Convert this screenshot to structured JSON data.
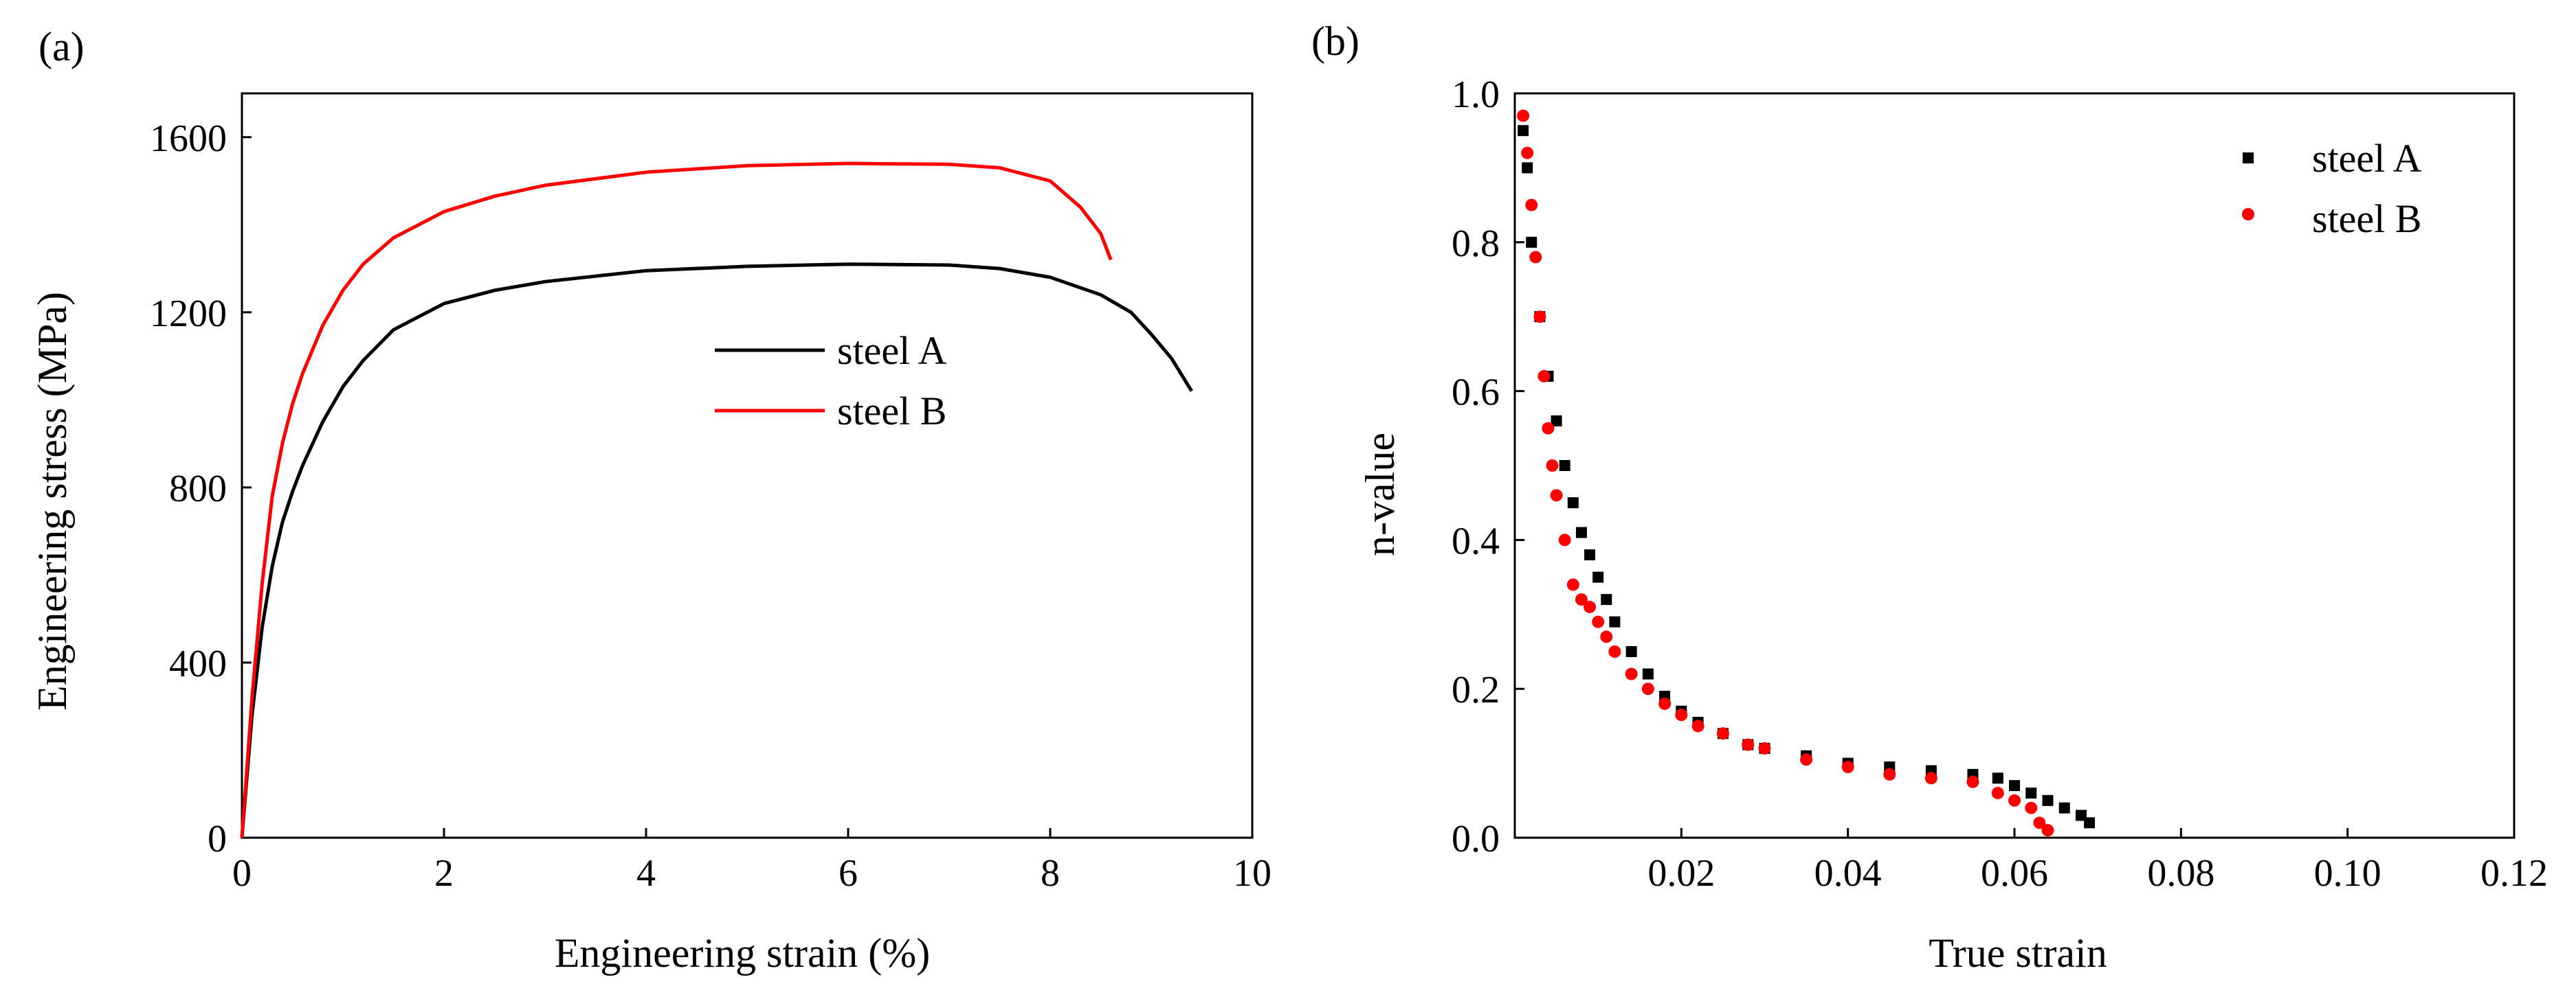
{
  "chart_data": [
    {
      "panel_label": "(a)",
      "type": "line",
      "title": "",
      "xlabel": "Engineering strain (%)",
      "ylabel": "Engineering stress (MPa)",
      "xlim": [
        0,
        10
      ],
      "ylim": [
        0,
        1700
      ],
      "xticks": [
        0,
        2,
        4,
        6,
        8,
        10
      ],
      "xtick_labels": [
        "0",
        "2",
        "4",
        "6",
        "8",
        "10"
      ],
      "yticks": [
        0,
        400,
        800,
        1200,
        1600
      ],
      "ytick_labels": [
        "0",
        "400",
        "800",
        "1200",
        "1600"
      ],
      "grid": false,
      "legend_position": "center-right",
      "series": [
        {
          "name": "steel A",
          "color": "#000000",
          "x": [
            0,
            0.1,
            0.2,
            0.3,
            0.4,
            0.5,
            0.6,
            0.8,
            1.0,
            1.2,
            1.5,
            2.0,
            2.5,
            3.0,
            4.0,
            5.0,
            6.0,
            7.0,
            7.5,
            8.0,
            8.5,
            8.8,
            9.0,
            9.2,
            9.4
          ],
          "y": [
            0,
            280,
            480,
            620,
            720,
            790,
            850,
            950,
            1030,
            1090,
            1160,
            1220,
            1250,
            1270,
            1295,
            1305,
            1310,
            1308,
            1300,
            1280,
            1240,
            1200,
            1150,
            1095,
            1020
          ]
        },
        {
          "name": "steel B",
          "color": "#ff0000",
          "x": [
            0,
            0.1,
            0.2,
            0.3,
            0.4,
            0.5,
            0.6,
            0.8,
            1.0,
            1.2,
            1.5,
            2.0,
            2.5,
            3.0,
            4.0,
            5.0,
            6.0,
            7.0,
            7.5,
            8.0,
            8.3,
            8.5,
            8.6
          ],
          "y": [
            0,
            320,
            580,
            780,
            900,
            990,
            1060,
            1170,
            1250,
            1310,
            1370,
            1430,
            1465,
            1490,
            1520,
            1535,
            1540,
            1538,
            1530,
            1500,
            1440,
            1380,
            1320
          ]
        }
      ]
    },
    {
      "panel_label": "(b)",
      "type": "scatter",
      "title": "",
      "xlabel": "True strain",
      "ylabel": "n-value",
      "xlim": [
        0,
        0.12
      ],
      "ylim": [
        0,
        1.0
      ],
      "xticks": [
        0.02,
        0.04,
        0.06,
        0.08,
        0.1,
        0.12
      ],
      "xtick_labels": [
        "0.02",
        "0.04",
        "0.06",
        "0.08",
        "0.10",
        "0.12"
      ],
      "yticks": [
        0,
        0.2,
        0.4,
        0.6,
        0.8,
        1.0
      ],
      "ytick_labels": [
        "0.0",
        "0.2",
        "0.4",
        "0.6",
        "0.8",
        "1.0"
      ],
      "grid": false,
      "legend_position": "top-right",
      "series": [
        {
          "name": "steel A",
          "marker": "square",
          "color": "#000000",
          "x": [
            0.001,
            0.0015,
            0.002,
            0.003,
            0.004,
            0.005,
            0.006,
            0.007,
            0.008,
            0.009,
            0.01,
            0.011,
            0.012,
            0.014,
            0.016,
            0.018,
            0.02,
            0.022,
            0.025,
            0.028,
            0.03,
            0.035,
            0.04,
            0.045,
            0.05,
            0.055,
            0.058,
            0.06,
            0.062,
            0.064,
            0.066,
            0.068,
            0.069
          ],
          "y": [
            0.95,
            0.9,
            0.8,
            0.7,
            0.62,
            0.56,
            0.5,
            0.45,
            0.41,
            0.38,
            0.35,
            0.32,
            0.29,
            0.25,
            0.22,
            0.19,
            0.17,
            0.155,
            0.14,
            0.125,
            0.12,
            0.11,
            0.1,
            0.095,
            0.09,
            0.085,
            0.08,
            0.07,
            0.06,
            0.05,
            0.04,
            0.03,
            0.02
          ]
        },
        {
          "name": "steel B",
          "marker": "circle",
          "color": "#ff0000",
          "x": [
            0.001,
            0.0015,
            0.002,
            0.0025,
            0.003,
            0.0035,
            0.004,
            0.0045,
            0.005,
            0.006,
            0.007,
            0.008,
            0.009,
            0.01,
            0.011,
            0.012,
            0.014,
            0.016,
            0.018,
            0.02,
            0.022,
            0.025,
            0.028,
            0.03,
            0.035,
            0.04,
            0.045,
            0.05,
            0.055,
            0.058,
            0.06,
            0.062,
            0.063,
            0.064
          ],
          "y": [
            0.97,
            0.92,
            0.85,
            0.78,
            0.7,
            0.62,
            0.55,
            0.5,
            0.46,
            0.4,
            0.34,
            0.32,
            0.31,
            0.29,
            0.27,
            0.25,
            0.22,
            0.2,
            0.18,
            0.165,
            0.15,
            0.14,
            0.125,
            0.12,
            0.105,
            0.095,
            0.085,
            0.08,
            0.075,
            0.06,
            0.05,
            0.04,
            0.02,
            0.01
          ]
        }
      ]
    }
  ]
}
